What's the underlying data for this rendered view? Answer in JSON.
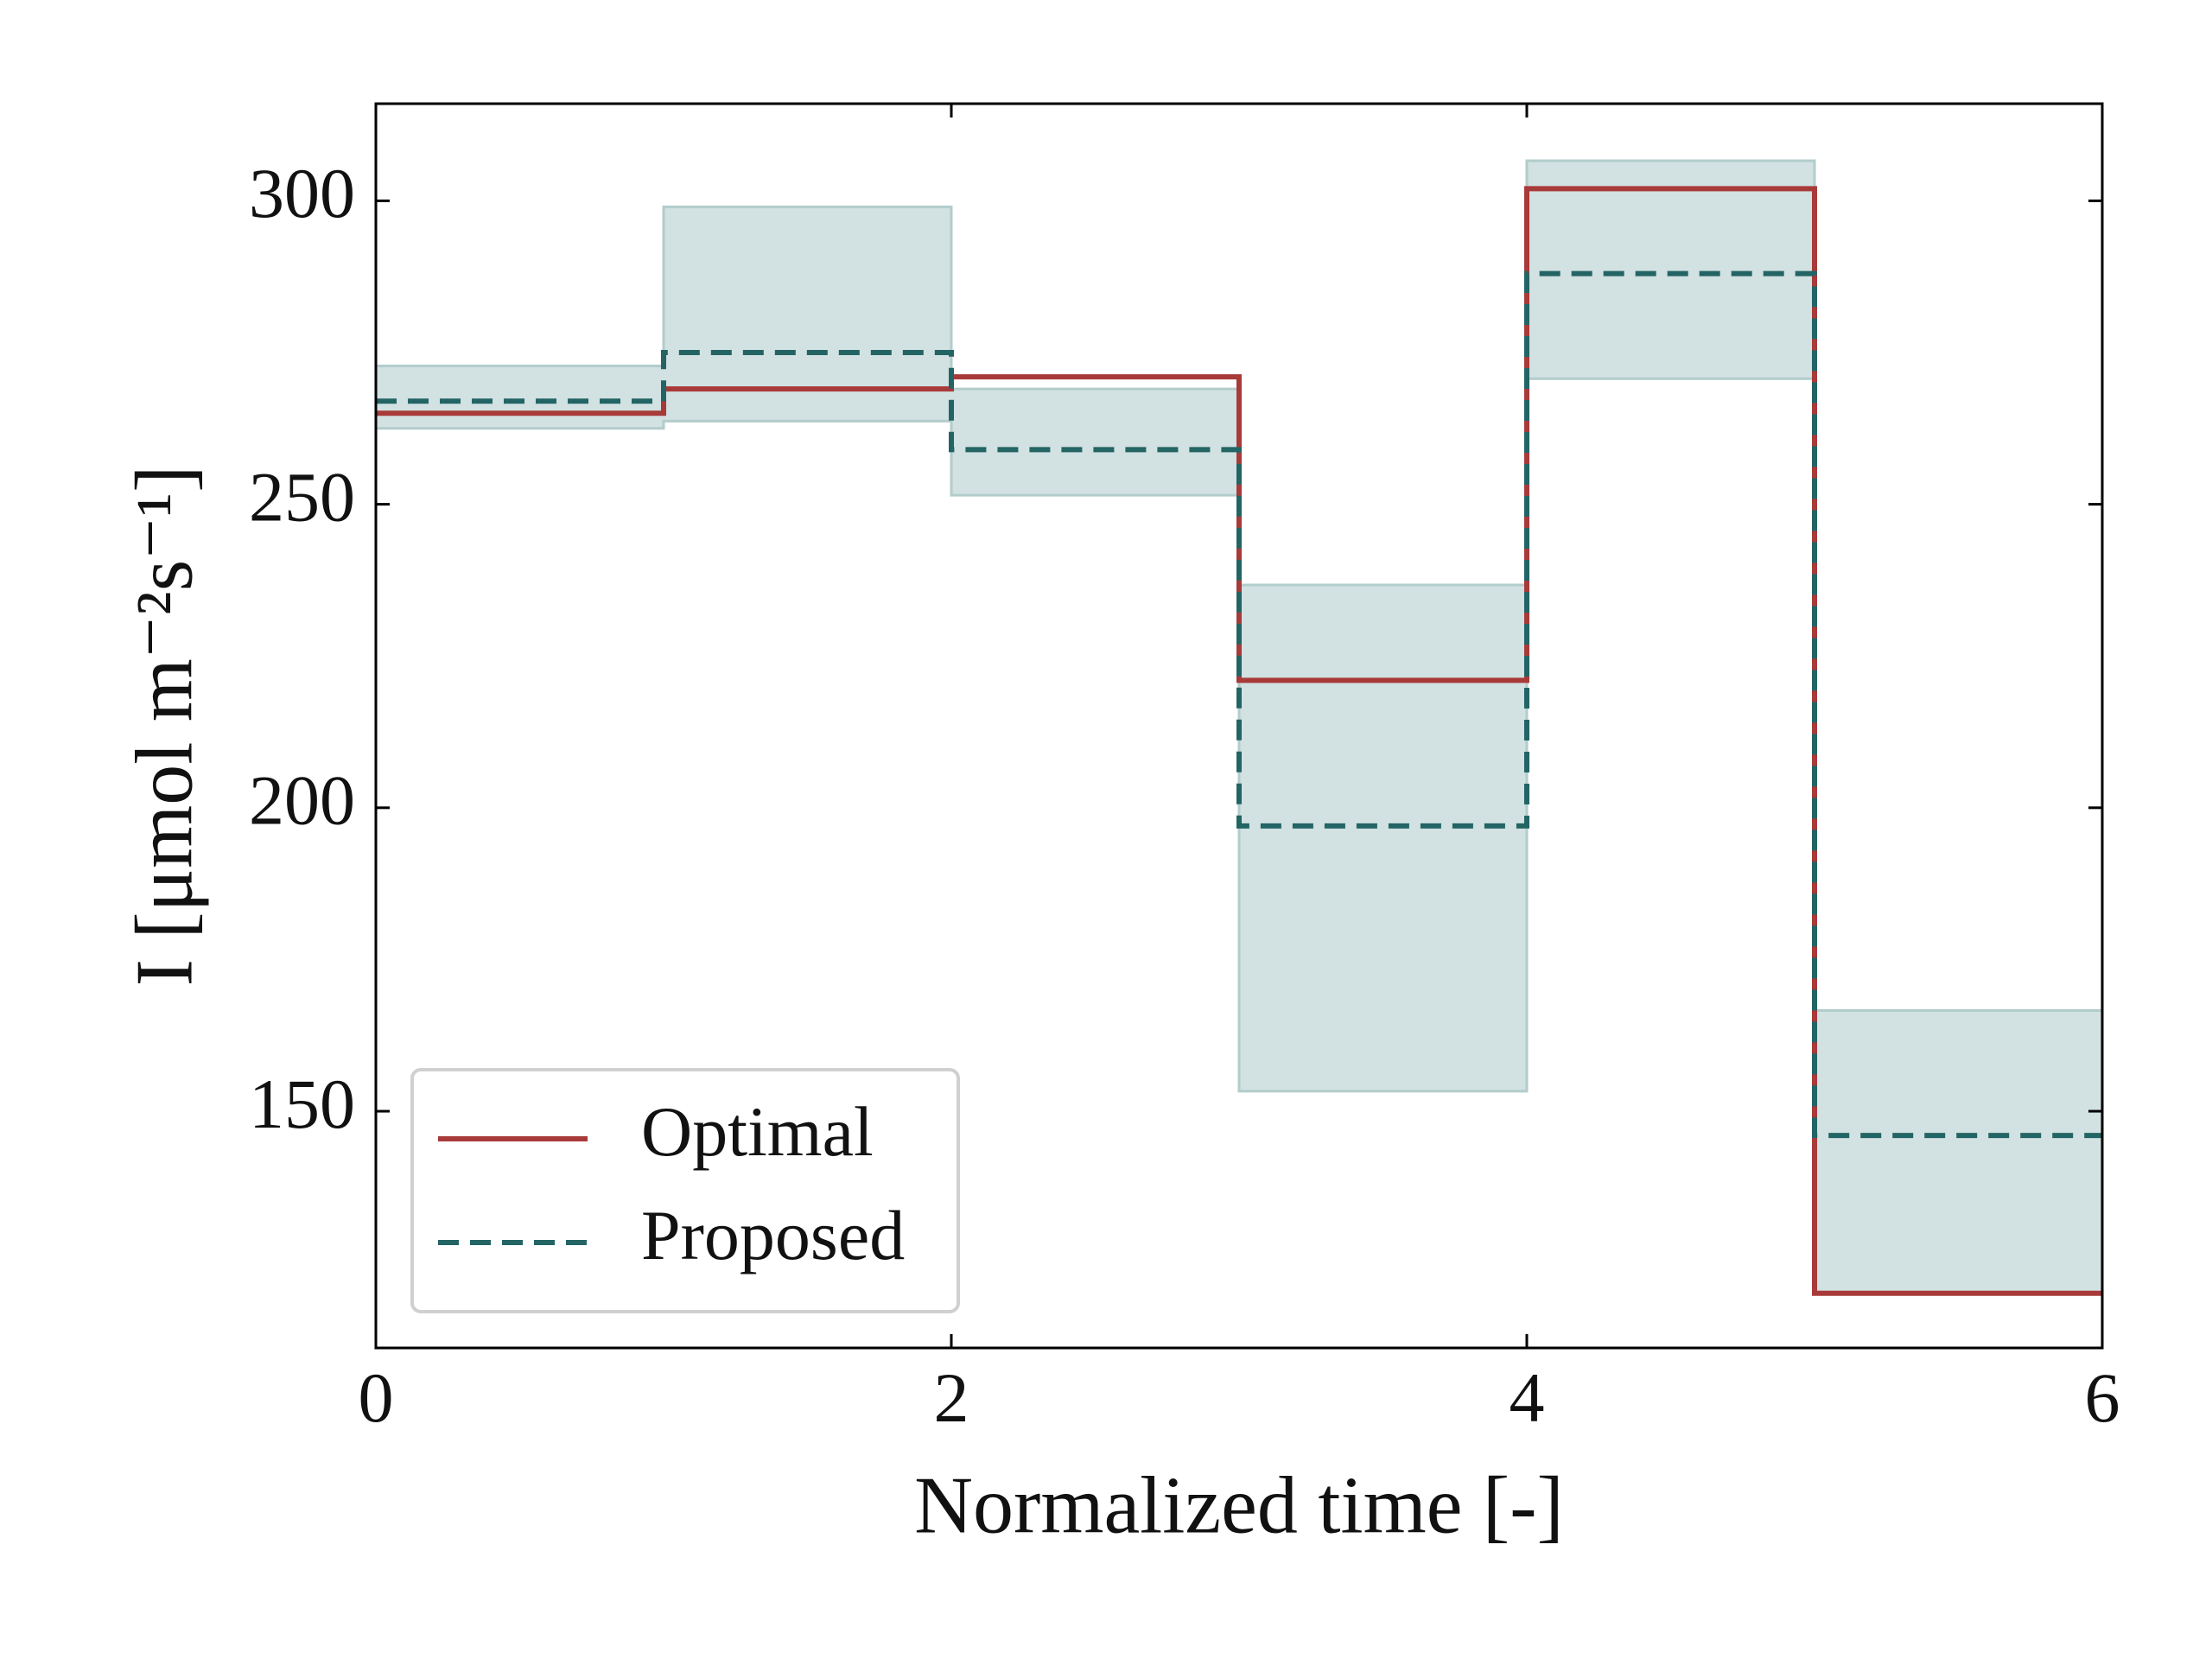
{
  "chart_data": {
    "type": "step",
    "xlabel": "Normalized time [-]",
    "ylabel": "I [μmol m⁻²s⁻¹]",
    "x": [
      0,
      1,
      2,
      3,
      4,
      5,
      6
    ],
    "where": "post",
    "series": [
      {
        "name": "Optimal",
        "color": "#a83a3a",
        "style": "solid",
        "values": [
          265,
          269,
          271,
          221,
          302,
          120,
          120
        ]
      },
      {
        "name": "Proposed",
        "color": "#236464",
        "style": "dashed",
        "values": [
          267,
          275,
          259,
          197,
          288,
          146,
          146
        ],
        "band": {
          "color": "#d2e1e1",
          "lower": [
            262.5,
            263.7,
            251.5,
            153.3,
            270.7,
            120,
            120
          ],
          "upper": [
            272.8,
            299,
            269,
            236.7,
            306.6,
            166.6,
            166.6
          ]
        }
      }
    ],
    "xlim": [
      0,
      6
    ],
    "xticks": [
      0,
      2,
      4,
      6
    ],
    "ylim": [
      111,
      316
    ],
    "yticks": [
      150,
      200,
      250,
      300
    ],
    "grid": false,
    "legend": "lower left"
  }
}
